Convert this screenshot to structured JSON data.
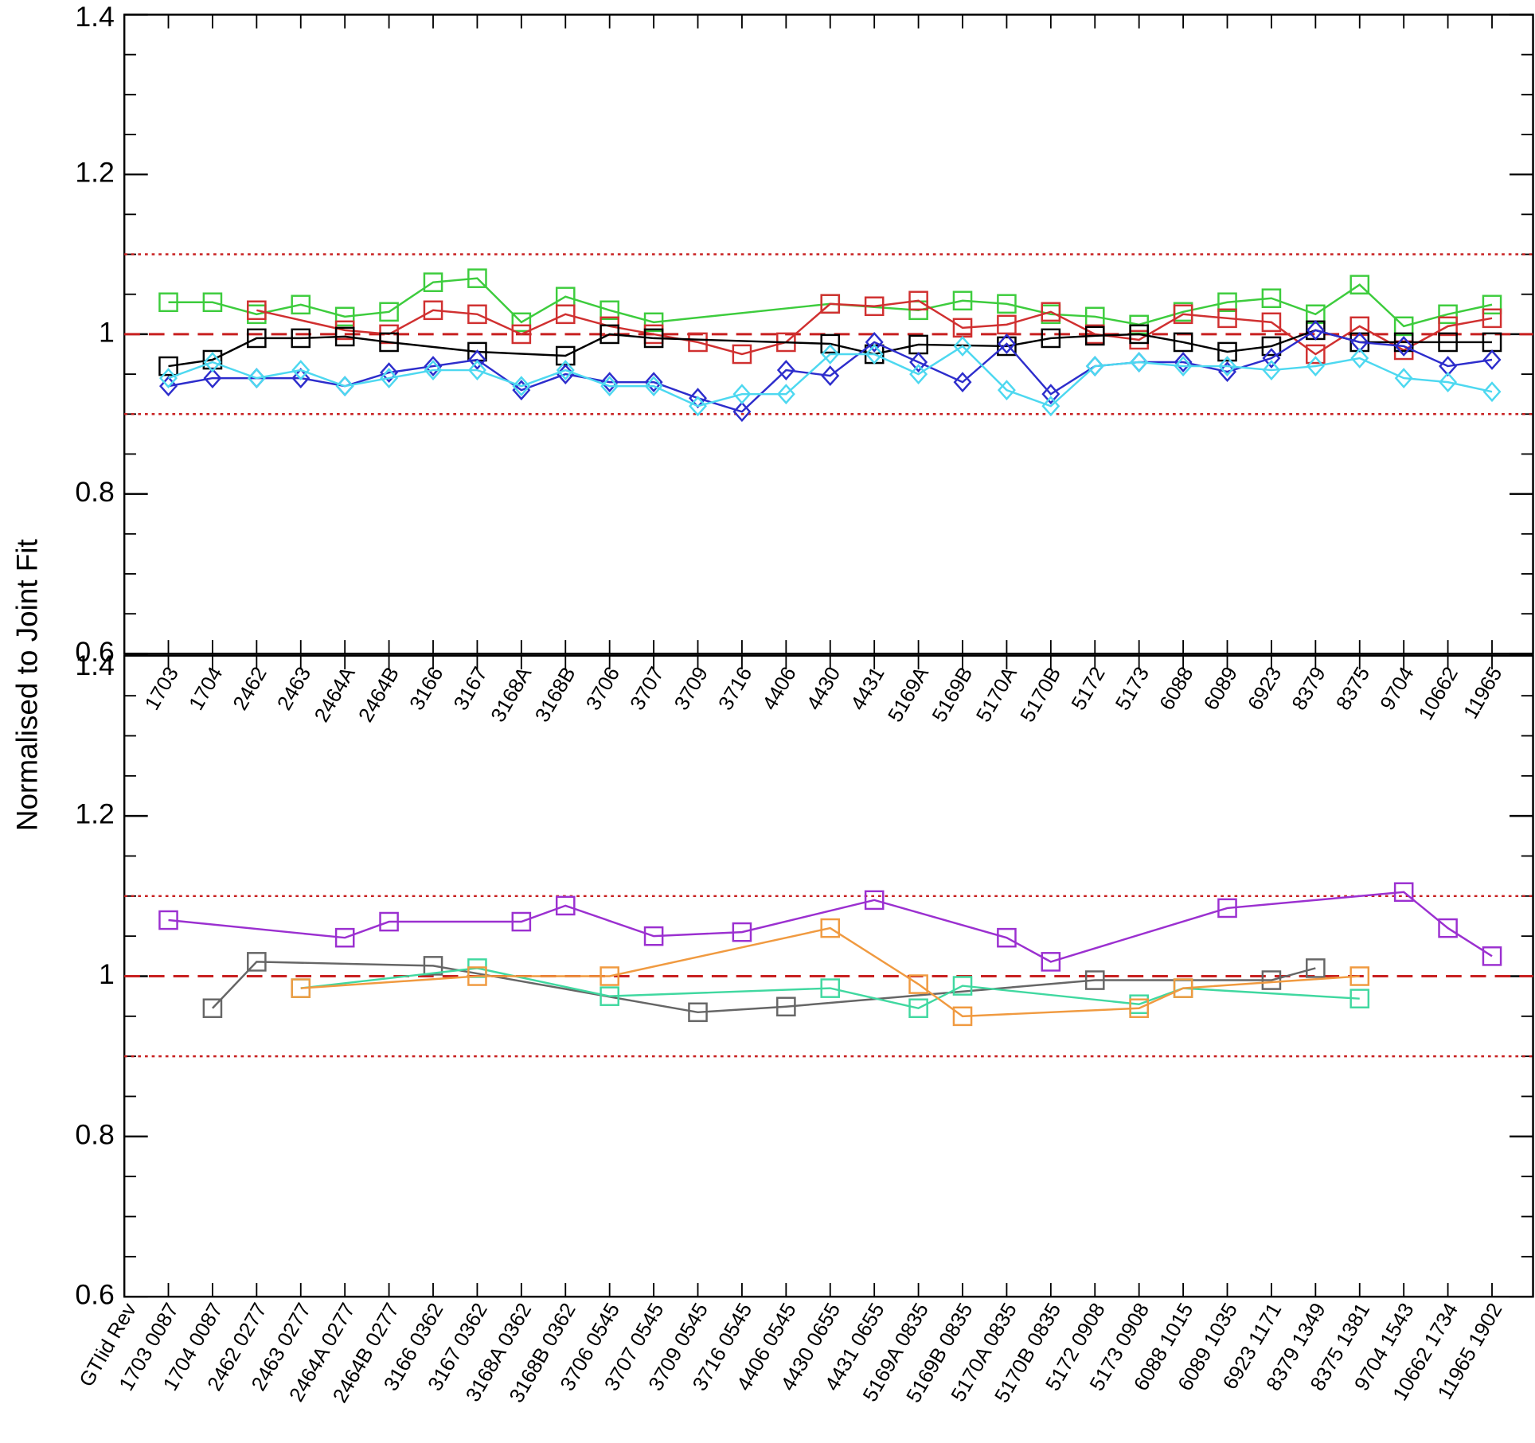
{
  "ylabel": "Normalised to Joint Fit",
  "chart_data": [
    {
      "type": "line",
      "categories": [
        "1703",
        "1704",
        "2462",
        "2463",
        "2464A",
        "2464B",
        "3166",
        "3167",
        "3168A",
        "3168B",
        "3706",
        "3707",
        "3709",
        "3716",
        "4406",
        "4430",
        "4431",
        "5169A",
        "5169B",
        "5170A",
        "5170B",
        "5172",
        "5173",
        "6088",
        "6089",
        "6923",
        "8379",
        "8375",
        "9704",
        "10662",
        "11965"
      ],
      "label_colors": [
        "#3dcc3d",
        "#3dcc3d",
        "#000000",
        "#000000",
        "#000000",
        "#000000",
        "#3dcc3d",
        "#3dcc3d",
        "#3dcc3d",
        "#3dcc3d",
        "#3dcc3d",
        "#3dcc3d",
        "#3dcc3d",
        "#3dcc3d",
        "#3dcc3d",
        "#000000",
        "#000000",
        "#000000",
        "#000000",
        "#000000",
        "#000000",
        "#3dcc3d",
        "#3dcc3d",
        "#d03030",
        "#d03030",
        "#3dcc3d",
        "#3dcc3d",
        "#000000",
        "#3dcc3d",
        "#3dcc3d",
        "#3dcc3d"
      ],
      "ylim": [
        0.6,
        1.4
      ],
      "yticks": [
        0.6,
        0.8,
        1.0,
        1.2,
        1.4
      ],
      "minor_yticks": [
        0.65,
        0.7,
        0.75,
        0.85,
        0.9,
        0.95,
        1.05,
        1.1,
        1.15,
        1.25,
        1.3,
        1.35
      ],
      "hlines": [
        {
          "value": 1.1,
          "style": "dotted",
          "color": "#c82020"
        },
        {
          "value": 1.0,
          "style": "dashed",
          "color": "#c82020"
        },
        {
          "value": 0.9,
          "style": "dotted",
          "color": "#c82020"
        }
      ],
      "series": [
        {
          "color": "#3dcc3d",
          "marker": "square",
          "x": [
            "1703",
            "1704",
            "2462",
            "2463",
            "2464A",
            "2464B",
            "3166",
            "3167",
            "3168A",
            "3168B",
            "3706",
            "3707",
            "4430",
            "5169A",
            "5169B",
            "5170A",
            "5170B",
            "5172",
            "5173",
            "6088",
            "6089",
            "6923",
            "8379",
            "8375",
            "9704",
            "10662",
            "11965"
          ],
          "values": [
            1.04,
            1.04,
            1.025,
            1.037,
            1.022,
            1.028,
            1.065,
            1.07,
            1.015,
            1.047,
            1.03,
            1.015,
            1.038,
            1.03,
            1.042,
            1.038,
            1.025,
            1.022,
            1.012,
            1.028,
            1.04,
            1.045,
            1.025,
            1.062,
            1.01,
            1.025,
            1.037
          ]
        },
        {
          "color": "#d03030",
          "marker": "square",
          "x": [
            "2462",
            "2464A",
            "2464B",
            "3166",
            "3167",
            "3168A",
            "3168B",
            "3706",
            "3707",
            "3709",
            "3716",
            "4406",
            "4430",
            "4431",
            "5169A",
            "5169B",
            "5170A",
            "5170B",
            "5172",
            "5173",
            "6088",
            "6089",
            "6923",
            "8379",
            "8375",
            "9704",
            "10662",
            "11965"
          ],
          "values": [
            1.03,
            1.005,
            1.0,
            1.03,
            1.025,
            1.0,
            1.025,
            1.01,
            1.0,
            0.99,
            0.975,
            0.99,
            1.038,
            1.035,
            1.042,
            1.008,
            1.012,
            1.028,
            1.0,
            0.993,
            1.025,
            1.02,
            1.015,
            0.975,
            1.01,
            0.98,
            1.01,
            1.02
          ]
        },
        {
          "color": "#000000",
          "marker": "square",
          "x": [
            "1703",
            "1704",
            "2462",
            "2463",
            "2464A",
            "2464B",
            "3167",
            "3168B",
            "3706",
            "3707",
            "4430",
            "4431",
            "5169A",
            "5170A",
            "5170B",
            "5172",
            "5173",
            "6088",
            "6089",
            "6923",
            "8379",
            "8375",
            "9704",
            "10662",
            "11965"
          ],
          "values": [
            0.96,
            0.968,
            0.995,
            0.995,
            0.997,
            0.99,
            0.978,
            0.973,
            1.0,
            0.995,
            0.988,
            0.975,
            0.987,
            0.985,
            0.995,
            0.998,
            1.0,
            0.99,
            0.978,
            0.985,
            1.005,
            0.99,
            0.99,
            0.99,
            0.99
          ]
        },
        {
          "color": "#2d2dcc",
          "marker": "diamond",
          "values": [
            0.935,
            0.945,
            0.945,
            0.945,
            0.935,
            0.952,
            0.96,
            0.968,
            0.93,
            0.95,
            0.94,
            0.94,
            0.92,
            0.903,
            0.955,
            0.948,
            0.99,
            0.965,
            0.94,
            0.988,
            0.925,
            0.96,
            0.965,
            0.965,
            0.953,
            0.97,
            1.005,
            0.99,
            0.985,
            0.96,
            0.968
          ]
        },
        {
          "color": "#4dd8f0",
          "marker": "diamond",
          "values": [
            0.945,
            0.965,
            0.945,
            0.955,
            0.935,
            0.945,
            0.955,
            0.955,
            0.935,
            0.955,
            0.935,
            0.935,
            0.91,
            0.925,
            0.925,
            0.975,
            0.975,
            0.95,
            0.985,
            0.93,
            0.91,
            0.96,
            0.965,
            0.96,
            0.96,
            0.955,
            0.96,
            0.97,
            0.945,
            0.94,
            0.928
          ]
        }
      ]
    },
    {
      "type": "line",
      "xlabel": "GTIid Rev",
      "categories": [
        "1703 0087",
        "1704 0087",
        "2462 0277",
        "2463 0277",
        "2464A 0277",
        "2464B 0277",
        "3166 0362",
        "3167 0362",
        "3168A 0362",
        "3168B 0362",
        "3706 0545",
        "3707 0545",
        "3709 0545",
        "3716 0545",
        "4406 0545",
        "4430 0655",
        "4431 0655",
        "5169A 0835",
        "5169B 0835",
        "5170A 0835",
        "5170B 0835",
        "5172 0908",
        "5173 0908",
        "6088 1015",
        "6089 1035",
        "6923 1171",
        "8379 1349",
        "8375 1381",
        "9704 1543",
        "10662 1734",
        "11965 1902"
      ],
      "label_colors": [
        "#3dcc3d",
        "#3dcc3d",
        "#000000",
        "#000000",
        "#000000",
        "#000000",
        "#3dcc3d",
        "#3dcc3d",
        "#3dcc3d",
        "#3dcc3d",
        "#3dcc3d",
        "#3dcc3d",
        "#3dcc3d",
        "#3dcc3d",
        "#3dcc3d",
        "#000000",
        "#000000",
        "#000000",
        "#000000",
        "#000000",
        "#000000",
        "#3dcc3d",
        "#3dcc3d",
        "#d03030",
        "#d03030",
        "#3dcc3d",
        "#3dcc3d",
        "#000000",
        "#3dcc3d",
        "#3dcc3d",
        "#3dcc3d"
      ],
      "ylim": [
        0.6,
        1.4
      ],
      "yticks": [
        0.6,
        0.8,
        1.0,
        1.2,
        1.4
      ],
      "minor_yticks": [
        0.65,
        0.7,
        0.75,
        0.85,
        0.9,
        0.95,
        1.05,
        1.1,
        1.15,
        1.25,
        1.3,
        1.35
      ],
      "hlines": [
        {
          "value": 1.1,
          "style": "dotted",
          "color": "#c82020"
        },
        {
          "value": 1.0,
          "style": "dashed",
          "color": "#c82020"
        },
        {
          "value": 0.9,
          "style": "dotted",
          "color": "#c82020"
        }
      ],
      "series": [
        {
          "color": "#9b30d0",
          "marker": "square",
          "x": [
            "1703 0087",
            "2464A 0277",
            "2464B 0277",
            "3168A 0362",
            "3168B 0362",
            "3707 0545",
            "3716 0545",
            "4431 0655",
            "5170A 0835",
            "5170B 0835",
            "6089 1035",
            "9704 1543",
            "10662 1734",
            "11965 1902"
          ],
          "values": [
            1.07,
            1.048,
            1.068,
            1.068,
            1.088,
            1.05,
            1.055,
            1.095,
            1.048,
            1.018,
            1.085,
            1.105,
            1.06,
            1.025
          ]
        },
        {
          "color": "#666666",
          "marker": "square",
          "x": [
            "1704 0087",
            "2462 0277",
            "3166 0362",
            "3709 0545",
            "4406 0545",
            "5172 0908",
            "6923 1171",
            "8379 1349"
          ],
          "values": [
            0.96,
            1.018,
            1.013,
            0.955,
            0.962,
            0.995,
            0.995,
            1.01
          ]
        },
        {
          "color": "#40d8a0",
          "marker": "square",
          "x": [
            "2463 0277",
            "3167 0362",
            "3706 0545",
            "4430 0655",
            "5169A 0835",
            "5169B 0835",
            "5173 0908",
            "6088 1015",
            "8375 1381"
          ],
          "values": [
            0.985,
            1.01,
            0.975,
            0.985,
            0.96,
            0.988,
            0.965,
            0.985,
            0.972
          ]
        },
        {
          "color": "#f09a40",
          "marker": "square",
          "x": [
            "2463 0277",
            "3167 0362",
            "3706 0545",
            "4430 0655",
            "5169A 0835",
            "5169B 0835",
            "5173 0908",
            "6088 1015",
            "8375 1381"
          ],
          "values": [
            0.985,
            1.0,
            1.0,
            1.06,
            0.99,
            0.95,
            0.96,
            0.985,
            1.0
          ]
        }
      ]
    }
  ]
}
